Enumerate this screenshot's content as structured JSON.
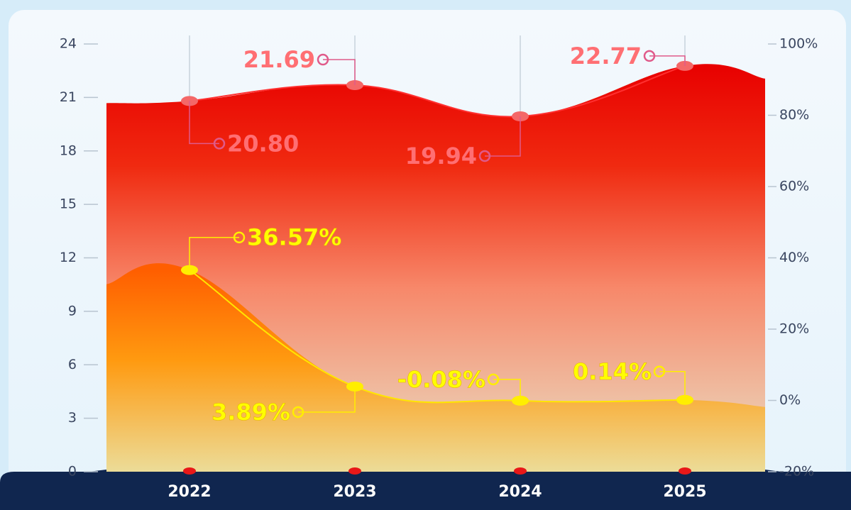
{
  "chart_data": {
    "type": "area",
    "categories": [
      "2022",
      "2023",
      "2024",
      "2025"
    ],
    "series": [
      {
        "name": null,
        "color": "#e60000",
        "values": [
          20.8,
          21.69,
          19.94,
          22.77
        ],
        "value_labels": [
          "20.80",
          "21.69",
          "19.94",
          "22.77"
        ]
      },
      {
        "name": null,
        "color": "#ff8a00",
        "axis": "y2",
        "values": [
          36.57,
          3.89,
          -0.08,
          0.14
        ],
        "value_labels": [
          "36.57%",
          "3.89%",
          "-0.08%",
          "0.14%"
        ]
      }
    ],
    "ylim": [
      0,
      24
    ],
    "yticks": [
      0,
      3,
      6,
      9,
      12,
      15,
      18,
      21,
      24
    ],
    "y2lim": [
      -20,
      100
    ],
    "y2ticks": [
      {
        "value": -20,
        "label": "-20%"
      },
      {
        "value": 0,
        "label": "0%"
      },
      {
        "value": 20,
        "label": "20%"
      },
      {
        "value": 40,
        "label": "40%"
      },
      {
        "value": 60,
        "label": "60%"
      },
      {
        "value": 80,
        "label": "80%"
      },
      {
        "value": 100,
        "label": "100%"
      }
    ]
  }
}
